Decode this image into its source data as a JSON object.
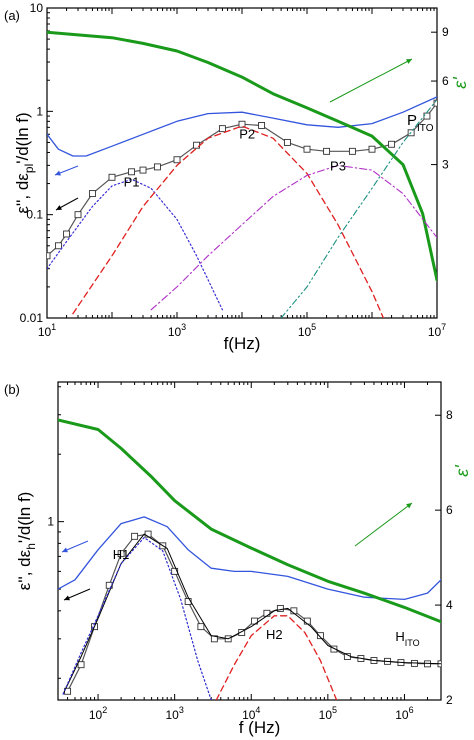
{
  "colors": {
    "frame": "#000000",
    "eps_line": "#3355dd",
    "deriv_line": "#555555",
    "eps_prime_line": "#1a9a1a",
    "p1": "#3b2fd6",
    "p2": "#e02020",
    "p3": "#b030c8",
    "pito": "#1a9080",
    "h1": "#2a2ad0",
    "h2": "#e02020",
    "fit": "#000000",
    "arrow_blue": "#3355dd",
    "arrow_black": "#000000",
    "arrow_green": "#1a9a1a"
  },
  "chart_data": [
    {
      "panel_label": "(a)",
      "type": "line",
      "xscale": "log",
      "xlim": [
        10,
        10000000
      ],
      "xlabel": "f(Hz)",
      "xticks": [
        {
          "v": 10,
          "b": "10",
          "e": "1"
        },
        {
          "v": 1000,
          "b": "10",
          "e": "3"
        },
        {
          "v": 100000,
          "b": "10",
          "e": "5"
        },
        {
          "v": 10000000,
          "b": "10",
          "e": "7"
        }
      ],
      "ylabel_left": "ε'', dε_pl'/d(ln f)",
      "yscale_left": "log",
      "ylim_left": [
        0.01,
        10
      ],
      "yticks_left": [
        "0.01",
        "0.1",
        "1",
        "10"
      ],
      "ylabel_right": "ε'",
      "yscale_right": "log",
      "ylim_right": [
        0.84,
        11
      ],
      "yticks_right": [
        "3",
        "6",
        "9"
      ],
      "series": [
        {
          "key": "eps",
          "axis": "left",
          "style": "solid",
          "x": [
            10,
            15,
            25,
            40,
            100,
            300,
            1000,
            3000,
            10000,
            30000,
            100000,
            300000,
            1000000,
            3000000,
            10000000
          ],
          "y": [
            0.6,
            0.43,
            0.37,
            0.37,
            0.46,
            0.6,
            0.8,
            0.95,
            0.98,
            0.86,
            0.74,
            0.7,
            0.76,
            0.98,
            1.38
          ]
        },
        {
          "key": "deriv",
          "axis": "left",
          "style": "markers",
          "x": [
            10,
            15,
            20,
            30,
            50,
            100,
            200,
            300,
            500,
            1000,
            2000,
            5000,
            10000,
            20000,
            50000,
            100000,
            200000,
            500000,
            1000000,
            2000000,
            4000000,
            7000000,
            10000000
          ],
          "y": [
            0.04,
            0.05,
            0.065,
            0.1,
            0.16,
            0.23,
            0.26,
            0.27,
            0.29,
            0.34,
            0.47,
            0.68,
            0.75,
            0.73,
            0.5,
            0.43,
            0.41,
            0.41,
            0.43,
            0.48,
            0.62,
            0.9,
            1.2
          ]
        },
        {
          "key": "eps_prime",
          "axis": "right",
          "style": "thick",
          "x": [
            10,
            30,
            100,
            300,
            1000,
            3000,
            10000,
            30000,
            100000,
            300000,
            1000000,
            3000000,
            6000000,
            10000000
          ],
          "y": [
            9.0,
            8.8,
            8.6,
            8.2,
            7.7,
            7.0,
            6.2,
            5.4,
            4.8,
            4.3,
            3.8,
            3.0,
            2.0,
            1.15
          ]
        },
        {
          "key": "p1",
          "label": "P1",
          "axis": "left",
          "style": "dotted",
          "x": [
            10,
            20,
            50,
            100,
            200,
            400,
            1000,
            2000,
            5000
          ],
          "y": [
            0.03,
            0.055,
            0.12,
            0.19,
            0.22,
            0.18,
            0.09,
            0.04,
            0.012
          ]
        },
        {
          "key": "p2",
          "label": "P2",
          "axis": "left",
          "style": "dashed",
          "x": [
            25,
            100,
            300,
            1000,
            3000,
            10000,
            30000,
            100000,
            300000,
            1000000,
            1500000
          ],
          "y": [
            0.011,
            0.04,
            0.12,
            0.3,
            0.55,
            0.72,
            0.55,
            0.25,
            0.08,
            0.018,
            0.01
          ]
        },
        {
          "key": "p3",
          "label": "P3",
          "axis": "left",
          "style": "dashdot",
          "x": [
            400,
            1000,
            3000,
            10000,
            30000,
            100000,
            300000,
            1000000,
            3000000,
            10000000
          ],
          "y": [
            0.012,
            0.02,
            0.04,
            0.08,
            0.15,
            0.24,
            0.3,
            0.27,
            0.16,
            0.06
          ]
        },
        {
          "key": "pito",
          "label": "P_ITO",
          "axis": "left",
          "style": "dashdotdot",
          "x": [
            40000,
            100000,
            300000,
            1000000,
            3000000,
            10000000
          ],
          "y": [
            0.01,
            0.02,
            0.06,
            0.18,
            0.5,
            1.3
          ]
        }
      ],
      "annotations": {
        "p1": "P1",
        "p2": "P2",
        "p3": "P3",
        "pito_main": "P",
        "pito_sub": "ITO"
      }
    },
    {
      "panel_label": "(b)",
      "type": "line",
      "xscale": "log",
      "xlim": [
        30,
        3000000
      ],
      "xlabel": "f (Hz)",
      "xticks": [
        {
          "v": 100,
          "b": "10",
          "e": "2"
        },
        {
          "v": 1000,
          "b": "10",
          "e": "3"
        },
        {
          "v": 10000,
          "b": "10",
          "e": "4"
        },
        {
          "v": 100000,
          "b": "10",
          "e": "5"
        },
        {
          "v": 1000000,
          "b": "10",
          "e": "6"
        }
      ],
      "ylabel_left": "ε'', dε_h'/d(ln f)",
      "yscale_left": "log",
      "ylim_left": [
        0.16,
        4.2
      ],
      "yticks_left": [
        "1"
      ],
      "ylabel_right": "ε'",
      "yscale_right": "linear",
      "ylim_right": [
        2,
        8.7
      ],
      "yticks_right": [
        "2",
        "4",
        "6",
        "8"
      ],
      "series": [
        {
          "key": "eps",
          "axis": "left",
          "style": "solid",
          "x": [
            30,
            50,
            100,
            200,
            400,
            800,
            1500,
            3000,
            6000,
            10000,
            30000,
            100000,
            300000,
            1000000,
            2000000,
            3000000
          ],
          "y": [
            0.5,
            0.55,
            0.75,
            0.98,
            1.05,
            0.95,
            0.75,
            0.62,
            0.6,
            0.6,
            0.57,
            0.5,
            0.46,
            0.45,
            0.48,
            0.55
          ]
        },
        {
          "key": "deriv",
          "axis": "left",
          "style": "markers",
          "x": [
            40,
            60,
            90,
            140,
            200,
            300,
            450,
            700,
            1000,
            1500,
            2200,
            3300,
            5000,
            7500,
            11000,
            16000,
            24000,
            36000,
            54000,
            80000,
            120000,
            180000,
            270000,
            400000,
            600000,
            900000,
            1350000,
            2000000,
            3000000
          ],
          "y": [
            0.175,
            0.23,
            0.34,
            0.52,
            0.72,
            0.86,
            0.88,
            0.78,
            0.6,
            0.44,
            0.34,
            0.3,
            0.3,
            0.32,
            0.36,
            0.39,
            0.41,
            0.4,
            0.36,
            0.31,
            0.27,
            0.25,
            0.245,
            0.24,
            0.238,
            0.235,
            0.233,
            0.232,
            0.232
          ]
        },
        {
          "key": "fit",
          "axis": "left",
          "style": "thin",
          "x": [
            35,
            60,
            100,
            200,
            400,
            800,
            1500,
            3000,
            5000,
            10000,
            20000,
            30000,
            60000,
            100000,
            200000,
            400000,
            1000000,
            3000000
          ],
          "y": [
            0.17,
            0.25,
            0.37,
            0.65,
            0.88,
            0.76,
            0.46,
            0.31,
            0.3,
            0.34,
            0.4,
            0.41,
            0.34,
            0.28,
            0.25,
            0.24,
            0.235,
            0.232
          ]
        },
        {
          "key": "eps_prime",
          "axis": "right",
          "style": "thick",
          "x": [
            30,
            100,
            200,
            500,
            1000,
            3000,
            10000,
            30000,
            100000,
            300000,
            1000000,
            3000000
          ],
          "y": [
            7.9,
            7.7,
            7.3,
            6.7,
            6.2,
            5.6,
            5.2,
            4.85,
            4.5,
            4.25,
            3.95,
            3.65
          ]
        },
        {
          "key": "h1",
          "label": "H1",
          "axis": "left",
          "style": "dotted",
          "x": [
            35,
            60,
            100,
            200,
            400,
            700,
            1200,
            2000,
            3000
          ],
          "y": [
            0.17,
            0.26,
            0.38,
            0.65,
            0.85,
            0.74,
            0.45,
            0.24,
            0.16
          ]
        },
        {
          "key": "h2",
          "label": "H2",
          "axis": "left",
          "style": "dashed",
          "x": [
            3500,
            6000,
            10000,
            20000,
            30000,
            50000,
            80000,
            130000
          ],
          "y": [
            0.16,
            0.23,
            0.31,
            0.38,
            0.38,
            0.32,
            0.24,
            0.16
          ]
        }
      ],
      "annotations": {
        "h1": "H1",
        "h2": "H2",
        "hito_main": "H",
        "hito_sub": "ITO"
      }
    }
  ]
}
